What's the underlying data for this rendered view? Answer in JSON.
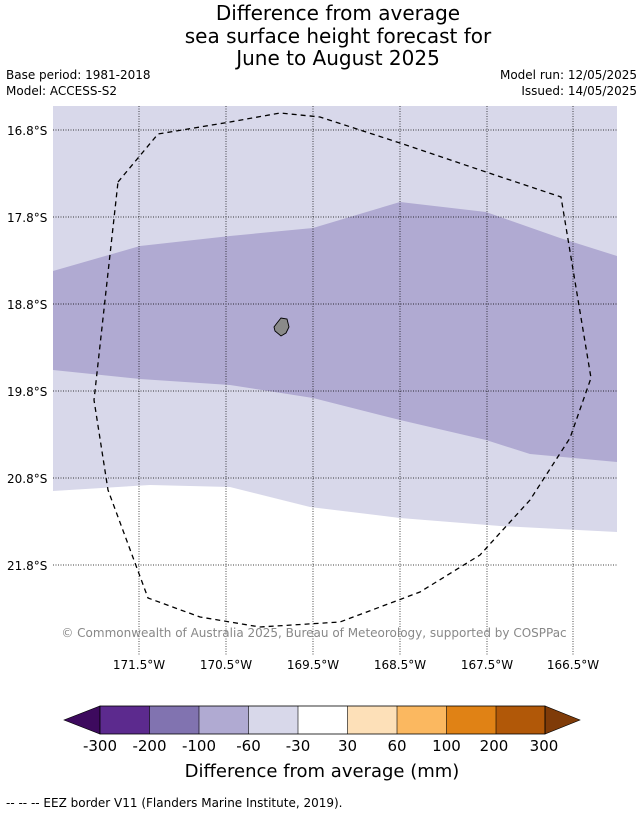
{
  "header": {
    "title_lines": [
      "Difference from average",
      "sea surface height forecast for",
      "June to August 2025"
    ],
    "base_period": "Base period: 1981-2018",
    "model": "Model: ACCESS-S2",
    "model_run": "Model run: 12/05/2025",
    "issued": "Issued: 14/05/2025"
  },
  "map": {
    "lat_labels": [
      "16.8°S",
      "17.8°S",
      "18.8°S",
      "19.8°S",
      "20.8°S",
      "21.8°S"
    ],
    "lon_labels": [
      "171.5°W",
      "170.5°W",
      "169.5°W",
      "168.5°W",
      "167.5°W",
      "166.5°W"
    ],
    "copyright": "© Commonwealth of Australia 2025, Bureau of Meteorology, supported by COSPPac",
    "colors": {
      "band_-30_-60": "#d8d8ea",
      "band_-60_-100": "#b0aad2",
      "land": "#8a8a8a",
      "gridline": "#000000",
      "eez_border": "#000000"
    }
  },
  "colorbar": {
    "ticks": [
      "-300",
      "-200",
      "-100",
      "-60",
      "-30",
      "30",
      "60",
      "100",
      "200",
      "300"
    ],
    "colors": [
      "#3d0a5e",
      "#5c2a8e",
      "#8173b0",
      "#b0aad2",
      "#d8d8ea",
      "#ffffff",
      "#fde0b8",
      "#fbb860",
      "#e08215",
      "#b15808",
      "#7f3b08"
    ],
    "label": "Difference from average (mm)"
  },
  "footnote": "--  --  -- EEZ border V11 (Flanders Marine Institute, 2019)."
}
